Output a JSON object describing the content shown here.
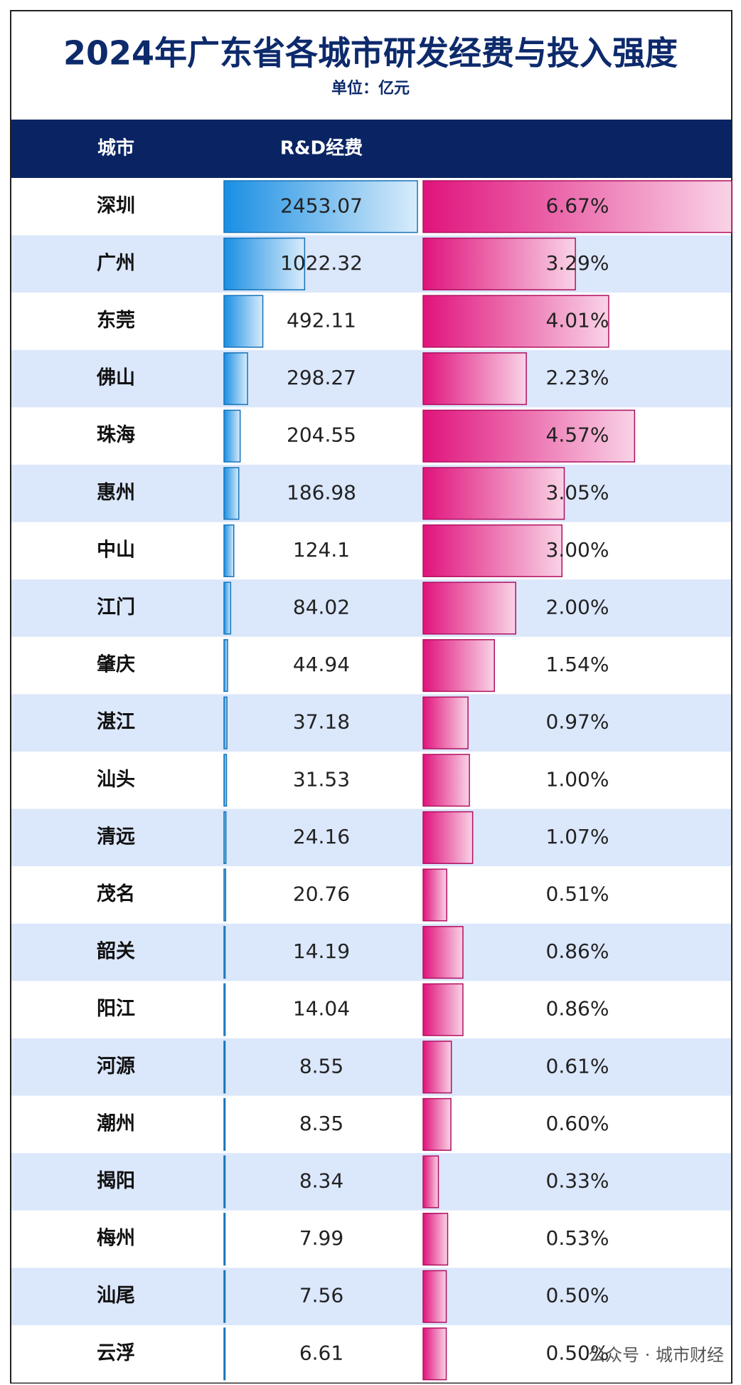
{
  "header": {
    "title": "2024年广东省各城市研发经费与投入强度",
    "unit": "单位：亿元"
  },
  "table": {
    "columns": [
      "城市",
      "R&D经费"
    ],
    "rows": [
      {
        "city": "深圳",
        "rd": 2453.07,
        "intensity": 6.67,
        "intensity_label": "6.67%"
      },
      {
        "city": "广州",
        "rd": 1022.32,
        "intensity": 3.29,
        "intensity_label": "3.29%"
      },
      {
        "city": "东莞",
        "rd": 492.11,
        "intensity": 4.01,
        "intensity_label": "4.01%"
      },
      {
        "city": "佛山",
        "rd": 298.27,
        "intensity": 2.23,
        "intensity_label": "2.23%"
      },
      {
        "city": "珠海",
        "rd": 204.55,
        "intensity": 4.57,
        "intensity_label": "4.57%"
      },
      {
        "city": "惠州",
        "rd": 186.98,
        "intensity": 3.05,
        "intensity_label": "3.05%"
      },
      {
        "city": "中山",
        "rd": 124.1,
        "intensity": 3.0,
        "intensity_label": "3.00%"
      },
      {
        "city": "江门",
        "rd": 84.02,
        "intensity": 2.0,
        "intensity_label": "2.00%"
      },
      {
        "city": "肇庆",
        "rd": 44.94,
        "intensity": 1.54,
        "intensity_label": "1.54%"
      },
      {
        "city": "湛江",
        "rd": 37.18,
        "intensity": 0.97,
        "intensity_label": "0.97%"
      },
      {
        "city": "汕头",
        "rd": 31.53,
        "intensity": 1.0,
        "intensity_label": "1.00%"
      },
      {
        "city": "清远",
        "rd": 24.16,
        "intensity": 1.07,
        "intensity_label": "1.07%"
      },
      {
        "city": "茂名",
        "rd": 20.76,
        "intensity": 0.51,
        "intensity_label": "0.51%"
      },
      {
        "city": "韶关",
        "rd": 14.19,
        "intensity": 0.86,
        "intensity_label": "0.86%"
      },
      {
        "city": "阳江",
        "rd": 14.04,
        "intensity": 0.86,
        "intensity_label": "0.86%"
      },
      {
        "city": "河源",
        "rd": 8.55,
        "intensity": 0.61,
        "intensity_label": "0.61%"
      },
      {
        "city": "潮州",
        "rd": 8.35,
        "intensity": 0.6,
        "intensity_label": "0.60%"
      },
      {
        "city": "揭阳",
        "rd": 8.34,
        "intensity": 0.33,
        "intensity_label": "0.33%"
      },
      {
        "city": "梅州",
        "rd": 7.99,
        "intensity": 0.53,
        "intensity_label": "0.53%"
      },
      {
        "city": "汕尾",
        "rd": 7.56,
        "intensity": 0.5,
        "intensity_label": "0.50%"
      },
      {
        "city": "云浮",
        "rd": 6.61,
        "intensity": 0.5,
        "intensity_label": "0.50%"
      }
    ]
  },
  "watermark": "公众号 · 城市财经"
}
